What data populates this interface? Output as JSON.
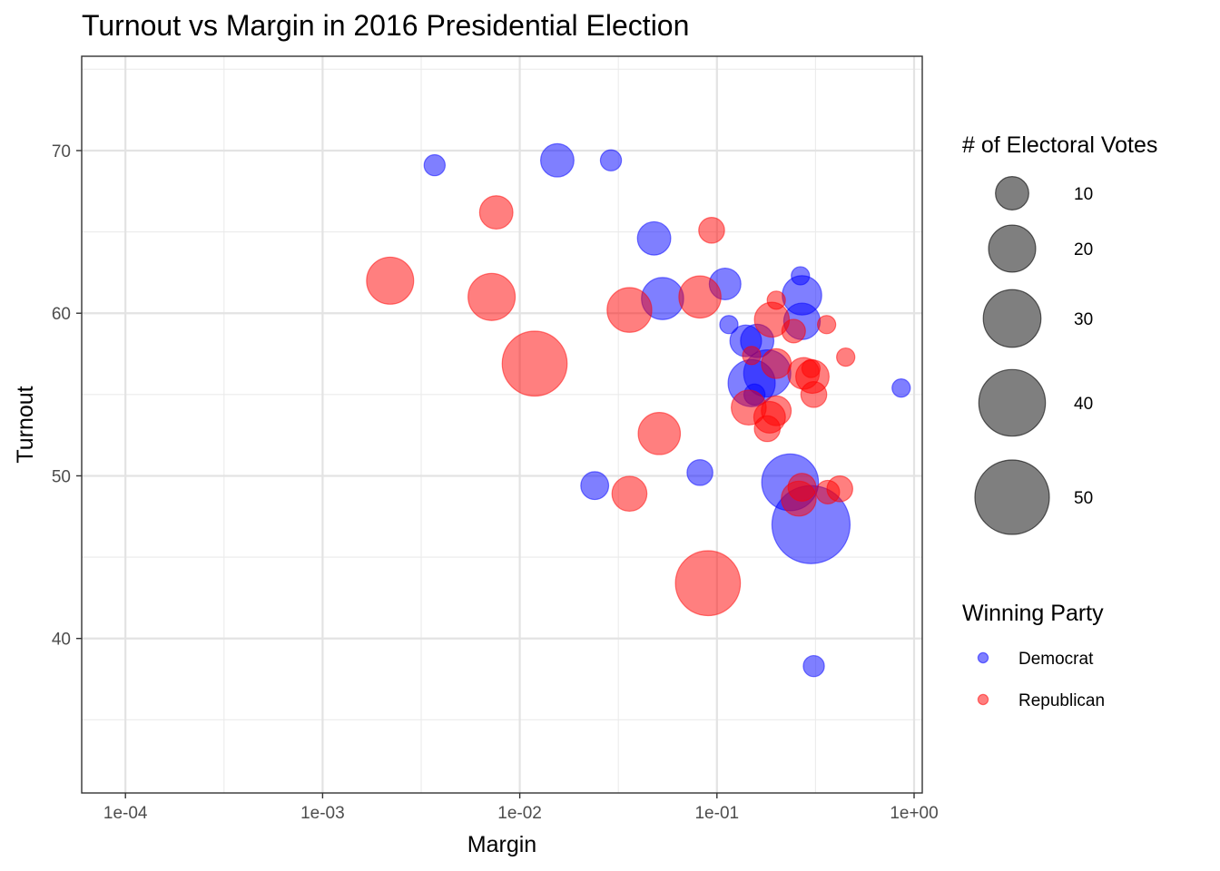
{
  "chart_data": {
    "type": "scatter",
    "title": "Turnout vs Margin in 2016 Presidential Election",
    "xlabel": "Margin",
    "ylabel": "Turnout",
    "x_scale": "log10",
    "xlim": [
      6e-05,
      1.1
    ],
    "ylim": [
      30.5,
      75.8
    ],
    "x_ticks": [
      {
        "value": 0.0001,
        "label": "1e-04"
      },
      {
        "value": 0.001,
        "label": "1e-03"
      },
      {
        "value": 0.01,
        "label": "1e-02"
      },
      {
        "value": 0.1,
        "label": "1e-01"
      },
      {
        "value": 1,
        "label": "1e+00"
      }
    ],
    "y_ticks": [
      {
        "value": 40,
        "label": "40"
      },
      {
        "value": 50,
        "label": "50"
      },
      {
        "value": 60,
        "label": "60"
      },
      {
        "value": 70,
        "label": "70"
      }
    ],
    "grid": true,
    "colors": {
      "Democrat": "#0000ff",
      "Republican": "#ff0000",
      "size_legend": "#000000"
    },
    "point_alpha": 0.5,
    "size_legend": {
      "title": "# of Electoral Votes",
      "entries": [
        {
          "value": 10,
          "label": "10"
        },
        {
          "value": 20,
          "label": "20"
        },
        {
          "value": 30,
          "label": "30"
        },
        {
          "value": 40,
          "label": "40"
        },
        {
          "value": 50,
          "label": "50"
        }
      ]
    },
    "color_legend": {
      "title": "Winning Party",
      "entries": [
        {
          "name": "Democrat",
          "label": "Democrat"
        },
        {
          "name": "Republican",
          "label": "Republican"
        }
      ]
    },
    "legend_position": "right",
    "series": [
      {
        "name": "Democrat",
        "points": [
          {
            "x": 0.0037,
            "y": 69.1,
            "ev": 4
          },
          {
            "x": 0.0155,
            "y": 69.4,
            "ev": 10
          },
          {
            "x": 0.029,
            "y": 69.4,
            "ev": 4
          },
          {
            "x": 0.048,
            "y": 64.6,
            "ev": 10
          },
          {
            "x": 0.053,
            "y": 60.9,
            "ev": 16
          },
          {
            "x": 0.11,
            "y": 61.8,
            "ev": 9
          },
          {
            "x": 0.115,
            "y": 59.3,
            "ev": 3
          },
          {
            "x": 0.265,
            "y": 62.3,
            "ev": 3
          },
          {
            "x": 0.27,
            "y": 61.1,
            "ev": 14
          },
          {
            "x": 0.27,
            "y": 59.5,
            "ev": 12
          },
          {
            "x": 0.14,
            "y": 58.3,
            "ev": 9
          },
          {
            "x": 0.16,
            "y": 58.3,
            "ev": 10
          },
          {
            "x": 0.18,
            "y": 56.3,
            "ev": 20
          },
          {
            "x": 0.15,
            "y": 55.7,
            "ev": 20
          },
          {
            "x": 0.155,
            "y": 55.0,
            "ev": 4
          },
          {
            "x": 0.86,
            "y": 55.4,
            "ev": 3
          },
          {
            "x": 0.024,
            "y": 49.4,
            "ev": 7
          },
          {
            "x": 0.082,
            "y": 50.2,
            "ev": 6
          },
          {
            "x": 0.235,
            "y": 49.6,
            "ev": 29
          },
          {
            "x": 0.3,
            "y": 47.0,
            "ev": 55
          },
          {
            "x": 0.31,
            "y": 38.3,
            "ev": 4
          }
        ]
      },
      {
        "name": "Republican",
        "points": [
          {
            "x": 0.0076,
            "y": 66.2,
            "ev": 10
          },
          {
            "x": 0.094,
            "y": 65.1,
            "ev": 6
          },
          {
            "x": 0.0022,
            "y": 62.0,
            "ev": 20
          },
          {
            "x": 0.0072,
            "y": 61.0,
            "ev": 20
          },
          {
            "x": 0.0119,
            "y": 56.9,
            "ev": 38
          },
          {
            "x": 0.036,
            "y": 60.2,
            "ev": 18
          },
          {
            "x": 0.082,
            "y": 61.0,
            "ev": 16
          },
          {
            "x": 0.2,
            "y": 60.8,
            "ev": 3
          },
          {
            "x": 0.19,
            "y": 59.6,
            "ev": 11
          },
          {
            "x": 0.245,
            "y": 58.9,
            "ev": 5
          },
          {
            "x": 0.36,
            "y": 59.3,
            "ev": 3
          },
          {
            "x": 0.15,
            "y": 57.4,
            "ev": 3
          },
          {
            "x": 0.2,
            "y": 56.9,
            "ev": 8
          },
          {
            "x": 0.275,
            "y": 56.3,
            "ev": 9
          },
          {
            "x": 0.3,
            "y": 56.6,
            "ev": 3
          },
          {
            "x": 0.305,
            "y": 56.1,
            "ev": 10
          },
          {
            "x": 0.45,
            "y": 57.3,
            "ev": 3
          },
          {
            "x": 0.31,
            "y": 55.0,
            "ev": 6
          },
          {
            "x": 0.145,
            "y": 54.2,
            "ev": 11
          },
          {
            "x": 0.2,
            "y": 54.0,
            "ev": 8
          },
          {
            "x": 0.185,
            "y": 53.6,
            "ev": 9
          },
          {
            "x": 0.18,
            "y": 52.9,
            "ev": 6
          },
          {
            "x": 0.051,
            "y": 52.6,
            "ev": 16
          },
          {
            "x": 0.036,
            "y": 48.9,
            "ev": 11
          },
          {
            "x": 0.27,
            "y": 49.3,
            "ev": 7
          },
          {
            "x": 0.26,
            "y": 48.6,
            "ev": 11
          },
          {
            "x": 0.365,
            "y": 49.0,
            "ev": 5
          },
          {
            "x": 0.42,
            "y": 49.2,
            "ev": 6
          },
          {
            "x": 0.09,
            "y": 43.4,
            "ev": 38
          }
        ]
      }
    ]
  }
}
